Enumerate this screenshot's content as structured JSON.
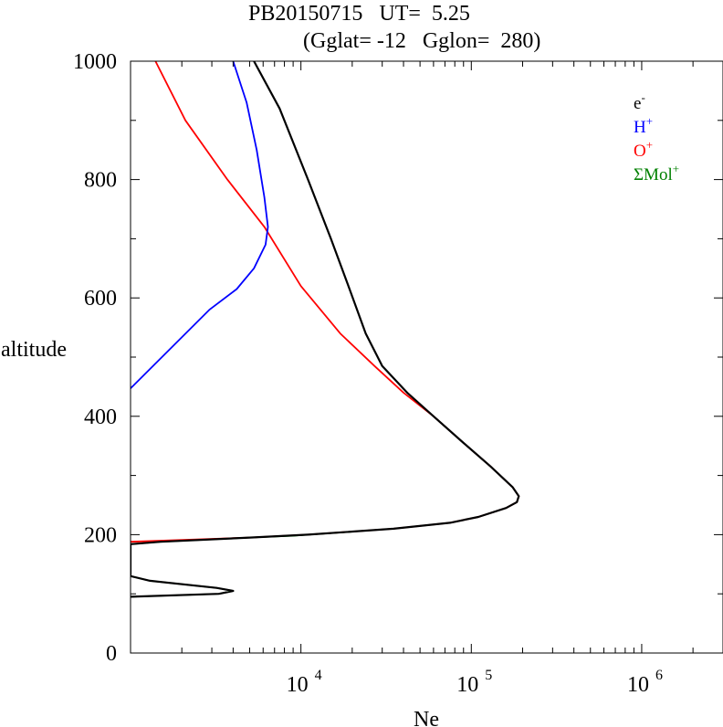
{
  "chart_data": {
    "type": "line",
    "title_line1": "PB20150715   UT=  5.25",
    "title_line2": "(Gglat= -12   Gglon=  280)",
    "xlabel": "Ne",
    "ylabel": "altitude",
    "x_scale": "log",
    "xlim": [
      1000,
      3000000
    ],
    "ylim": [
      0,
      1000
    ],
    "x_ticks": [
      {
        "value": 10000,
        "base": "10",
        "exp": "4"
      },
      {
        "value": 100000,
        "base": "10",
        "exp": "5"
      },
      {
        "value": 1000000,
        "base": "10",
        "exp": "6"
      }
    ],
    "y_ticks": [
      {
        "value": 0,
        "label": "0"
      },
      {
        "value": 200,
        "label": "200"
      },
      {
        "value": 400,
        "label": "400"
      },
      {
        "value": 600,
        "label": "600"
      },
      {
        "value": 800,
        "label": "800"
      },
      {
        "value": 1000,
        "label": "1000"
      }
    ],
    "grid": false,
    "legend_position": "top-right",
    "series": [
      {
        "name": "e-",
        "name_base": "e",
        "name_sup": "-",
        "color": "#000000",
        "width": 2.2,
        "points": [
          [
            1000,
            95
          ],
          [
            3300,
            100
          ],
          [
            4000,
            105
          ],
          [
            3200,
            110
          ],
          [
            1300,
            122
          ],
          [
            1000,
            130
          ],
          [
            1000,
            140
          ],
          [
            1000,
            184
          ],
          [
            1500,
            188
          ],
          [
            5000,
            195
          ],
          [
            11000,
            200
          ],
          [
            35000,
            210
          ],
          [
            75000,
            220
          ],
          [
            110000,
            230
          ],
          [
            160000,
            245
          ],
          [
            185000,
            255
          ],
          [
            190000,
            265
          ],
          [
            175000,
            280
          ],
          [
            130000,
            315
          ],
          [
            90000,
            355
          ],
          [
            60000,
            400
          ],
          [
            42000,
            440
          ],
          [
            30000,
            485
          ],
          [
            24000,
            540
          ],
          [
            19000,
            620
          ],
          [
            15000,
            700
          ],
          [
            11000,
            800
          ],
          [
            7500,
            920
          ],
          [
            5300,
            1000
          ]
        ]
      },
      {
        "name": "H+",
        "name_base": "H",
        "name_sup": "+",
        "color": "#0000ff",
        "width": 1.8,
        "points": [
          [
            1000,
            447
          ],
          [
            2900,
            580
          ],
          [
            4200,
            615
          ],
          [
            5300,
            650
          ],
          [
            6200,
            690
          ],
          [
            6400,
            720
          ],
          [
            6100,
            770
          ],
          [
            5500,
            850
          ],
          [
            4800,
            930
          ],
          [
            4000,
            1000
          ]
        ]
      },
      {
        "name": "O+",
        "name_base": "O",
        "name_sup": "+",
        "color": "#ff0000",
        "width": 1.8,
        "points": [
          [
            1000,
            188
          ],
          [
            5000,
            195
          ],
          [
            11000,
            200
          ],
          [
            35000,
            210
          ],
          [
            75000,
            220
          ],
          [
            110000,
            230
          ],
          [
            160000,
            245
          ],
          [
            185000,
            255
          ],
          [
            190000,
            265
          ],
          [
            175000,
            280
          ],
          [
            130000,
            315
          ],
          [
            90000,
            355
          ],
          [
            60000,
            400
          ],
          [
            40000,
            440
          ],
          [
            27000,
            485
          ],
          [
            17000,
            540
          ],
          [
            10000,
            620
          ],
          [
            6100,
            720
          ],
          [
            3700,
            800
          ],
          [
            2100,
            900
          ],
          [
            1400,
            1000
          ]
        ]
      },
      {
        "name": "ΣMol+",
        "name_base": "ΣMol",
        "name_sup": "+",
        "color": "#008000",
        "width": 1.6,
        "points": [
          [
            1000,
            95
          ],
          [
            3300,
            100
          ],
          [
            4000,
            105
          ],
          [
            3200,
            110
          ],
          [
            1300,
            122
          ],
          [
            1000,
            130
          ],
          [
            1000,
            140
          ],
          [
            1000,
            184
          ],
          [
            1500,
            188
          ],
          [
            3000,
            192
          ],
          [
            5000,
            195
          ],
          [
            9000,
            198
          ],
          [
            11000,
            200
          ],
          [
            20000,
            205
          ]
        ]
      }
    ]
  }
}
